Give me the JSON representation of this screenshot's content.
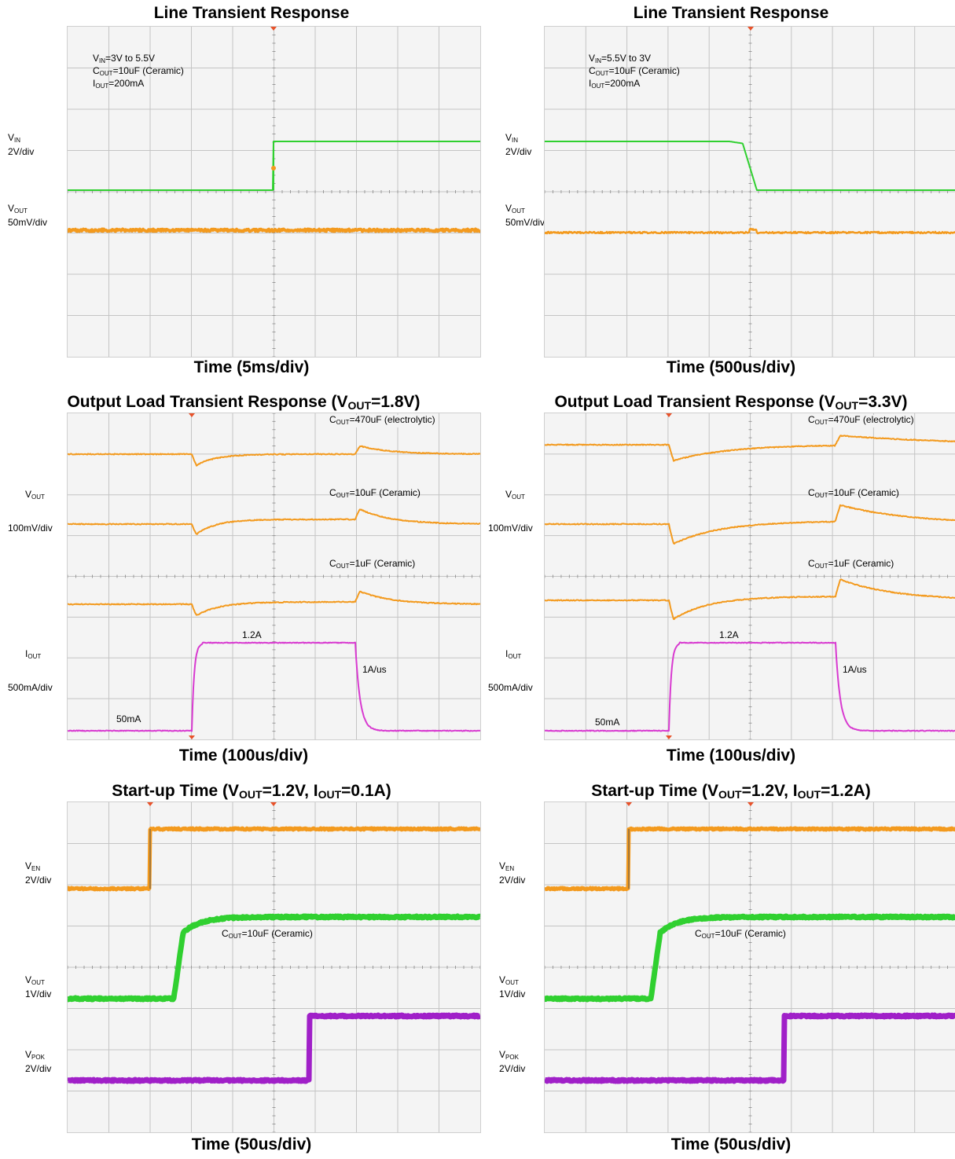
{
  "colors": {
    "orange": "#f39a1e",
    "green": "#30d030",
    "magenta": "#d83ad0",
    "purple": "#a020c8",
    "grid": "#c4c4c4",
    "plot_bg": "#f4f4f4"
  },
  "charts": [
    {
      "id": "line-up",
      "title": "Line Transient Response",
      "xlabel": "Time (5ms/div)",
      "settings": [
        {
          "main": "V",
          "sub": "IN",
          "rest": "=3V to 5.5V"
        },
        {
          "main": "C",
          "sub": "OUT",
          "rest": "=10uF (Ceramic)"
        },
        {
          "main": "I",
          "sub": "OUT",
          "rest": "=200mA"
        }
      ],
      "scales": [
        {
          "main": "V",
          "sub": "IN",
          "scale": "2V/div"
        },
        {
          "main": "V",
          "sub": "OUT",
          "scale": "50mV/div"
        }
      ]
    },
    {
      "id": "line-down",
      "title": "Line Transient Response",
      "xlabel": "Time (500us/div)",
      "settings": [
        {
          "main": "V",
          "sub": "IN",
          "rest": "=5.5V to 3V"
        },
        {
          "main": "C",
          "sub": "OUT",
          "rest": "=10uF (Ceramic)"
        },
        {
          "main": "I",
          "sub": "OUT",
          "rest": "=200mA"
        }
      ],
      "scales": [
        {
          "main": "V",
          "sub": "IN",
          "scale": "2V/div"
        },
        {
          "main": "V",
          "sub": "OUT",
          "scale": "50mV/div"
        }
      ]
    },
    {
      "id": "load-1v8",
      "title": {
        "pre": "Output Load Transient Response (V",
        "sub": "OUT",
        "post": "=1.8V)"
      },
      "xlabel": "Time (100us/div)",
      "scales": [
        {
          "main": "V",
          "sub": "OUT",
          "scale": "100mV/div"
        },
        {
          "main": "I",
          "sub": "OUT",
          "scale": "500mA/div"
        }
      ],
      "captions": [
        {
          "main": "C",
          "sub": "OUT",
          "rest": "=470uF (electrolytic)"
        },
        {
          "main": "C",
          "sub": "OUT",
          "rest": "=10uF (Ceramic)"
        },
        {
          "main": "C",
          "sub": "OUT",
          "rest": "=1uF (Ceramic)"
        }
      ],
      "current_labels": {
        "high": "1.2A",
        "low": "50mA",
        "slew": "1A/us"
      }
    },
    {
      "id": "load-3v3",
      "title": {
        "pre": "Output Load Transient Response (V",
        "sub": "OUT",
        "post": "=3.3V)"
      },
      "xlabel": "Time (100us/div)",
      "scales": [
        {
          "main": "V",
          "sub": "OUT",
          "scale": "100mV/div"
        },
        {
          "main": "I",
          "sub": "OUT",
          "scale": "500mA/div"
        }
      ],
      "captions": [
        {
          "main": "C",
          "sub": "OUT",
          "rest": "=470uF (electrolytic)"
        },
        {
          "main": "C",
          "sub": "OUT",
          "rest": "=10uF (Ceramic)"
        },
        {
          "main": "C",
          "sub": "OUT",
          "rest": "=1uF (Ceramic)"
        }
      ],
      "current_labels": {
        "high": "1.2A",
        "low": "50mA",
        "slew": "1A/us"
      }
    },
    {
      "id": "startup-0a1",
      "title": {
        "pre": "Start-up Time (V",
        "sub": "OUT",
        "mid": "=1.2V, I",
        "sub2": "OUT",
        "post": "=0.1A)"
      },
      "xlabel": "Time (50us/div)",
      "scales": [
        {
          "main": "V",
          "sub": "EN",
          "scale": "2V/div"
        },
        {
          "main": "V",
          "sub": "OUT",
          "scale": "1V/div"
        },
        {
          "main": "V",
          "sub": "POK",
          "scale": "2V/div"
        }
      ],
      "caption": {
        "main": "C",
        "sub": "OUT",
        "rest": "=10uF (Ceramic)"
      }
    },
    {
      "id": "startup-1a2",
      "title": {
        "pre": "Start-up Time (V",
        "sub": "OUT",
        "mid": "=1.2V, I",
        "sub2": "OUT",
        "post": "=1.2A)"
      },
      "xlabel": "Time (50us/div)",
      "scales": [
        {
          "main": "V",
          "sub": "EN",
          "scale": "2V/div"
        },
        {
          "main": "V",
          "sub": "OUT",
          "scale": "1V/div"
        },
        {
          "main": "V",
          "sub": "POK",
          "scale": "2V/div"
        }
      ],
      "caption": {
        "main": "C",
        "sub": "OUT",
        "rest": "=10uF (Ceramic)"
      }
    }
  ]
}
